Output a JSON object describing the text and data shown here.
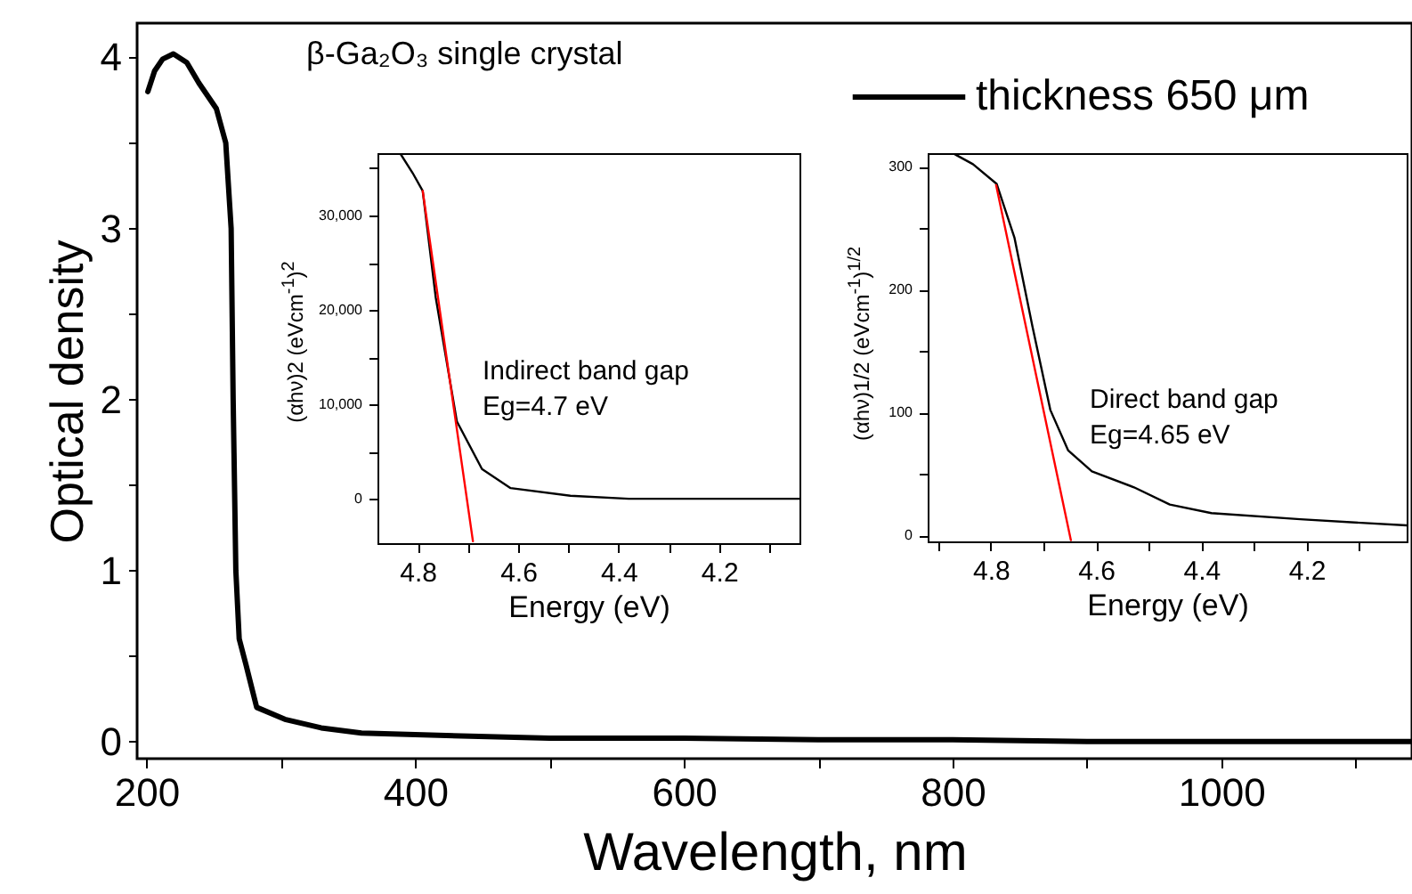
{
  "chart_data": [
    {
      "type": "line",
      "xlabel": "Wavelength, nm",
      "ylabel": "Optical density",
      "annotations": [
        "β-Ga₂O₃ single crystal"
      ],
      "legend": "top right",
      "xlim": [
        193,
        1142
      ],
      "ylim": [
        -0.1,
        4.2
      ],
      "xticks": [
        200,
        {
          "value": 300,
          "label": null
        },
        400,
        {
          "value": 500,
          "label": null
        },
        600,
        {
          "value": 700,
          "label": null
        },
        800,
        {
          "value": 900,
          "label": null
        },
        1000,
        {
          "value": 1100,
          "label": null
        }
      ],
      "yticks": [
        0,
        {
          "value": 0.5,
          "label": null
        },
        1,
        {
          "value": 1.5,
          "label": null
        },
        2,
        {
          "value": 2.5,
          "label": null
        },
        3,
        {
          "value": 3.5,
          "label": null
        },
        4
      ],
      "series": [
        {
          "name": "thickness 650 μm",
          "color": "#000000",
          "x": [
            201,
            206,
            212,
            220,
            230,
            239,
            252,
            259,
            263,
            264.5,
            266.5,
            269,
            274,
            282,
            303,
            330,
            360,
            400,
            500,
            600,
            700,
            800,
            900,
            1000,
            1142
          ],
          "values": [
            3.8,
            3.92,
            3.99,
            4.02,
            3.97,
            3.85,
            3.7,
            3.5,
            3.0,
            2.0,
            1.0,
            0.6,
            0.45,
            0.2,
            0.13,
            0.08,
            0.05,
            0.04,
            0.02,
            0.02,
            0.01,
            0.01,
            0,
            0,
            0
          ]
        }
      ]
    },
    {
      "type": "line",
      "xlabel": "Energy (eV)",
      "ylabel": "(αhν)2 (eVcm$^{-1}$)$^{2}$",
      "annotations": [
        "Indirect band gap",
        "Eg=4.7 eV"
      ],
      "xlim": [
        4.88,
        4.04
      ],
      "ylim": [
        -4700,
        36600
      ],
      "xticks": [
        4.8,
        {
          "value": 4.7,
          "label": null
        },
        4.6,
        {
          "value": 4.5,
          "label": null
        },
        4.4,
        {
          "value": 4.3,
          "label": null
        },
        4.2,
        {
          "value": 4.1,
          "label": null
        }
      ],
      "yticks": [
        0,
        {
          "value": 5000,
          "label": null
        },
        {
          "value": 10000,
          "label": "10,000"
        },
        {
          "value": 15000,
          "label": null
        },
        {
          "value": 20000,
          "label": "20,000"
        },
        {
          "value": 25000,
          "label": null
        },
        {
          "value": 30000,
          "label": "30,000"
        },
        {
          "value": 35000,
          "label": null
        }
      ],
      "series": [
        {
          "color": "#000000",
          "x": [
            4.835,
            4.81,
            4.79,
            4.764,
            4.722,
            4.672,
            4.615,
            4.496,
            4.38,
            4.2,
            4.04
          ],
          "values": [
            36600,
            34500,
            32600,
            21300,
            8200,
            3150,
            1130,
            320,
            0,
            0,
            0
          ]
        },
        {
          "color": "#ff0000",
          "x": [
            4.79,
            4.69
          ],
          "values": [
            32600,
            -4500
          ]
        }
      ]
    },
    {
      "type": "line",
      "xlabel": "Energy (eV)",
      "ylabel": "(αhν)1/2 (eVcm$^{-1}$)$^{1/2}$",
      "annotations": [
        "Direct band gap",
        "Eg=4.65 eV"
      ],
      "xlim": [
        4.92,
        4.01
      ],
      "ylim": [
        -5,
        311
      ],
      "xticks": [
        {
          "value": 4.9,
          "label": null
        },
        4.8,
        {
          "value": 4.7,
          "label": null
        },
        4.6,
        {
          "value": 4.5,
          "label": null
        },
        4.4,
        {
          "value": 4.3,
          "label": null
        },
        4.2,
        {
          "value": 4.1,
          "label": null
        }
      ],
      "yticks": [
        0,
        {
          "value": 50,
          "label": null
        },
        100,
        {
          "value": 150,
          "label": null
        },
        200,
        {
          "value": 250,
          "label": null
        },
        300
      ],
      "series": [
        {
          "color": "#000000",
          "x": [
            4.868,
            4.834,
            4.789,
            4.755,
            4.721,
            4.687,
            4.653,
            4.608,
            4.528,
            4.46,
            4.381,
            4.212,
            4.01
          ],
          "values": [
            310,
            302,
            286,
            242,
            170,
            102,
            69,
            52,
            39,
            25,
            18,
            13,
            8
          ]
        },
        {
          "color": "#ff0000",
          "x": [
            4.79,
            4.648
          ],
          "values": [
            285,
            -4
          ]
        }
      ]
    }
  ]
}
